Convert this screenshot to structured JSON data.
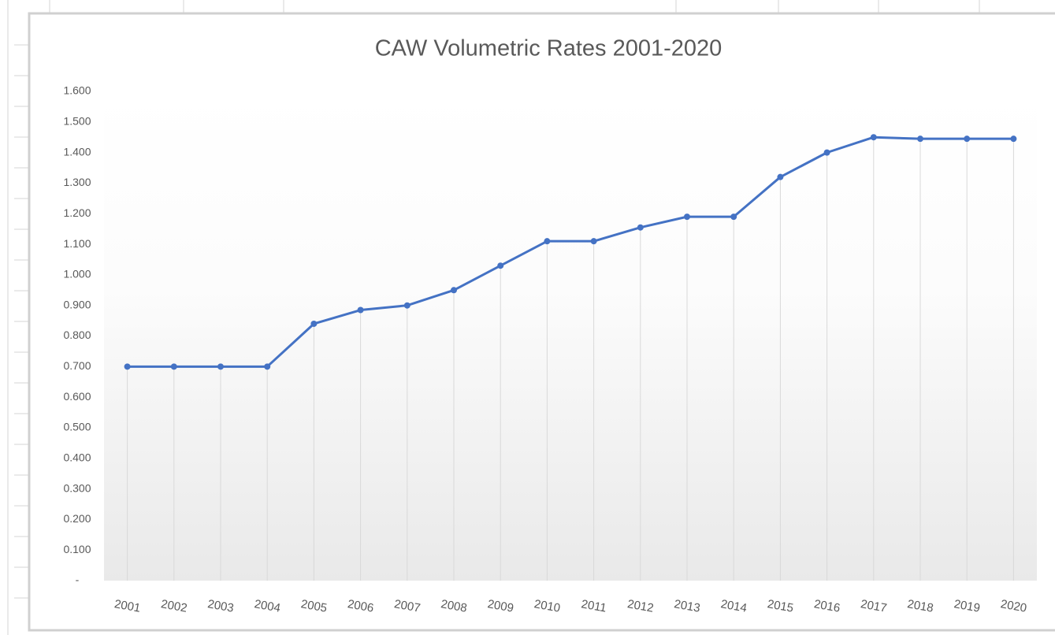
{
  "chart_data": {
    "type": "line",
    "title": "CAW Volumetric Rates 2001-2020",
    "categories": [
      "2001",
      "2002",
      "2003",
      "2004",
      "2005",
      "2006",
      "2007",
      "2008",
      "2009",
      "2010",
      "2011",
      "2012",
      "2013",
      "2014",
      "2015",
      "2016",
      "2017",
      "2018",
      "2019",
      "2020"
    ],
    "series": [
      {
        "name": "CAW Volumetric Rates",
        "color": "#4472c4",
        "values": [
          0.7,
          0.7,
          0.7,
          0.7,
          0.84,
          0.885,
          0.9,
          0.95,
          1.03,
          1.11,
          1.11,
          1.155,
          1.19,
          1.19,
          1.32,
          1.4,
          1.45,
          1.445,
          1.445,
          1.445
        ]
      }
    ],
    "ylim": [
      0,
      1.6
    ],
    "yticks": [
      {
        "value": 0,
        "label": "-"
      },
      {
        "value": 0.1,
        "label": "0.100"
      },
      {
        "value": 0.2,
        "label": "0.200"
      },
      {
        "value": 0.3,
        "label": "0.300"
      },
      {
        "value": 0.4,
        "label": "0.400"
      },
      {
        "value": 0.5,
        "label": "0.500"
      },
      {
        "value": 0.6,
        "label": "0.600"
      },
      {
        "value": 0.7,
        "label": "0.700"
      },
      {
        "value": 0.8,
        "label": "0.800"
      },
      {
        "value": 0.9,
        "label": "0.900"
      },
      {
        "value": 1.0,
        "label": "1.000"
      },
      {
        "value": 1.1,
        "label": "1.100"
      },
      {
        "value": 1.2,
        "label": "1.200"
      },
      {
        "value": 1.3,
        "label": "1.300"
      },
      {
        "value": 1.4,
        "label": "1.400"
      },
      {
        "value": 1.5,
        "label": "1.500"
      },
      {
        "value": 1.6,
        "label": "1.600"
      }
    ],
    "drop_lines": true
  }
}
